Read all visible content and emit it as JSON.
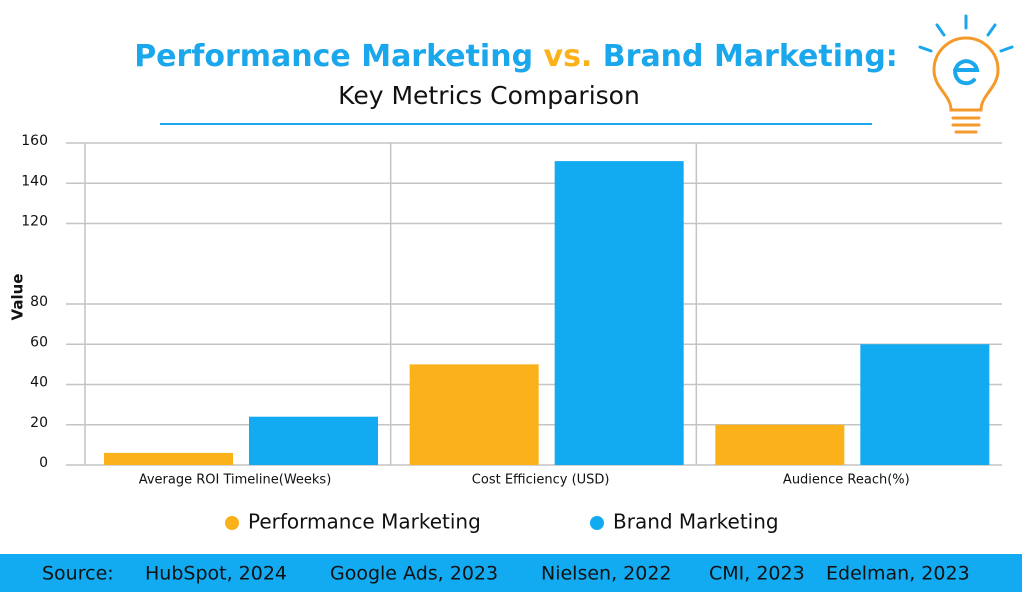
{
  "chart_data": {
    "type": "bar",
    "title_parts": [
      "Performance Marketing",
      "vs.",
      "Brand Marketing:"
    ],
    "subtitle": "Key Metrics Comparison",
    "y_label": "Value",
    "categories": [
      "Average ROI Timeline(Weeks)",
      "Cost Efficiency (USD)",
      "Audience Reach(%)"
    ],
    "series": [
      {
        "name": "Performance Marketing",
        "color": "#fbb11a",
        "values": [
          6,
          50,
          20
        ]
      },
      {
        "name": "Brand Marketing",
        "color": "#12aaf0",
        "values": [
          24,
          151,
          60
        ]
      }
    ],
    "ylim": [
      0,
      160
    ],
    "yticks": [
      0,
      20,
      40,
      60,
      80,
      120,
      140,
      160
    ],
    "grid": true,
    "legend": "bottom",
    "source_label": "Source:",
    "sources": [
      "HubSpot, 2024",
      "Google Ads, 2023",
      "Nielsen, 2022",
      "CMI, 2023",
      "Edelman, 2023"
    ]
  }
}
